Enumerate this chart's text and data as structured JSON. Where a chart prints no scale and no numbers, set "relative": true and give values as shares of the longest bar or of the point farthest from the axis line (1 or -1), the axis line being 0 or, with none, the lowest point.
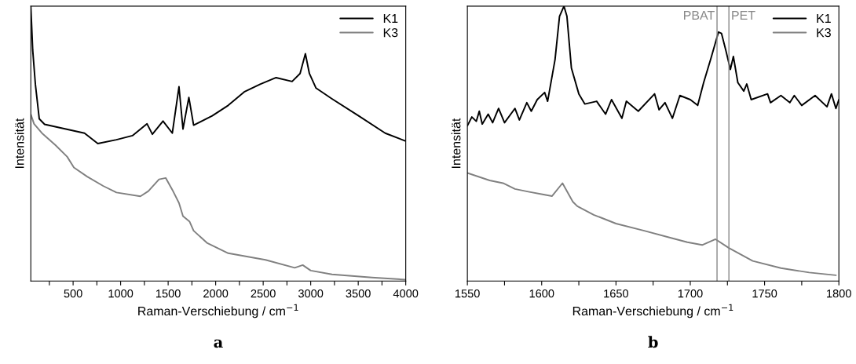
{
  "chart_data": [
    {
      "type": "line",
      "title": "a",
      "xlabel": "Raman-Verschiebung / cm$^{−1}$",
      "ylabel": "Intensität",
      "relative": true,
      "legend": "top right",
      "xlim": [
        55,
        4000
      ],
      "xticks": [
        {
          "value": 250,
          "label": null
        },
        500,
        {
          "value": 750,
          "label": null
        },
        1000,
        {
          "value": 1250,
          "label": null
        },
        1500,
        {
          "value": 1750,
          "label": null
        },
        2000,
        {
          "value": 2250,
          "label": null
        },
        2500,
        {
          "value": 2750,
          "label": null
        },
        3000,
        {
          "value": 3250,
          "label": null
        },
        3500,
        {
          "value": 3750,
          "label": null
        },
        4000
      ],
      "series": [
        {
          "name": "K1",
          "color": "#000000",
          "x": [
            55,
            75,
            103,
            144,
            200,
            424,
            620,
            760,
            956,
            1124,
            1278,
            1334,
            1446,
            1544,
            1614,
            1656,
            1718,
            1768,
            1964,
            2132,
            2300,
            2468,
            2636,
            2804,
            2888,
            2944,
            2986,
            3056,
            3224,
            3504,
            3784,
            3994
          ],
          "values": [
            1.0,
            0.84,
            0.716,
            0.59,
            0.57,
            0.553,
            0.538,
            0.5,
            0.514,
            0.529,
            0.572,
            0.534,
            0.582,
            0.538,
            0.707,
            0.553,
            0.668,
            0.567,
            0.601,
            0.639,
            0.688,
            0.716,
            0.74,
            0.726,
            0.755,
            0.827,
            0.755,
            0.702,
            0.663,
            0.601,
            0.538,
            0.51
          ]
        },
        {
          "name": "K3",
          "color": "#808080",
          "x": [
            55,
            89,
            172,
            312,
            438,
            508,
            648,
            816,
            956,
            1208,
            1292,
            1404,
            1474,
            1544,
            1614,
            1656,
            1726,
            1768,
            1908,
            2132,
            2524,
            2832,
            2916,
            3000,
            3224,
            3644,
            3994
          ],
          "values": [
            0.606,
            0.572,
            0.538,
            0.495,
            0.452,
            0.413,
            0.38,
            0.346,
            0.322,
            0.308,
            0.327,
            0.37,
            0.375,
            0.332,
            0.284,
            0.236,
            0.216,
            0.183,
            0.139,
            0.101,
            0.077,
            0.048,
            0.058,
            0.038,
            0.024,
            0.0125,
            0.005
          ]
        }
      ]
    },
    {
      "type": "line",
      "title": "b",
      "xlabel": "Raman-Verschiebung / cm$^{−1}$",
      "ylabel": "Intensität",
      "relative": true,
      "legend": "top right",
      "xlim": [
        1550,
        1800
      ],
      "xticks": [
        1550,
        {
          "value": 1575,
          "label": null
        },
        1600,
        {
          "value": 1625,
          "label": null
        },
        1650,
        {
          "value": 1675,
          "label": null
        },
        1700,
        {
          "value": 1725,
          "label": null
        },
        1750,
        {
          "value": 1775,
          "label": null
        },
        1800
      ],
      "ref_lines": [
        {
          "axis": "x",
          "value": 1718,
          "label": "PBAT",
          "color": "#888888"
        },
        {
          "axis": "x",
          "value": 1726,
          "label": "PET",
          "color": "#888888"
        }
      ],
      "series": [
        {
          "name": "K1",
          "color": "#000000",
          "x": [
            1550,
            1553,
            1556,
            1558,
            1560,
            1564,
            1567,
            1571,
            1575,
            1582,
            1585,
            1590,
            1593,
            1597,
            1602,
            1604,
            1609,
            1612,
            1615,
            1617,
            1620,
            1625,
            1629,
            1637,
            1643,
            1647,
            1654,
            1657,
            1665,
            1676,
            1679,
            1683,
            1688,
            1693,
            1700,
            1705,
            1709,
            1714,
            1719,
            1721,
            1724,
            1727,
            1729,
            1732,
            1736,
            1738,
            1741,
            1752,
            1754,
            1761,
            1767,
            1770,
            1775,
            1784,
            1792,
            1795,
            1798,
            1800
          ],
          "values": [
            0.565,
            0.597,
            0.581,
            0.618,
            0.571,
            0.607,
            0.576,
            0.628,
            0.576,
            0.628,
            0.586,
            0.649,
            0.618,
            0.66,
            0.686,
            0.654,
            0.806,
            0.963,
            1.0,
            0.963,
            0.775,
            0.681,
            0.644,
            0.654,
            0.607,
            0.66,
            0.592,
            0.654,
            0.618,
            0.681,
            0.623,
            0.649,
            0.592,
            0.675,
            0.66,
            0.639,
            0.722,
            0.812,
            0.906,
            0.901,
            0.838,
            0.77,
            0.817,
            0.722,
            0.691,
            0.717,
            0.66,
            0.681,
            0.649,
            0.675,
            0.649,
            0.675,
            0.639,
            0.675,
            0.634,
            0.681,
            0.628,
            0.66
          ]
        },
        {
          "name": "K3",
          "color": "#808080",
          "x": [
            1550,
            1565,
            1574,
            1582,
            1591,
            1602,
            1607,
            1614,
            1621,
            1624,
            1635,
            1650,
            1669,
            1687,
            1698,
            1708,
            1717,
            1726,
            1742,
            1761,
            1780,
            1798
          ],
          "values": [
            0.393,
            0.366,
            0.356,
            0.335,
            0.325,
            0.314,
            0.309,
            0.356,
            0.288,
            0.272,
            0.241,
            0.209,
            0.183,
            0.157,
            0.141,
            0.131,
            0.152,
            0.12,
            0.073,
            0.047,
            0.031,
            0.021
          ]
        }
      ]
    }
  ]
}
